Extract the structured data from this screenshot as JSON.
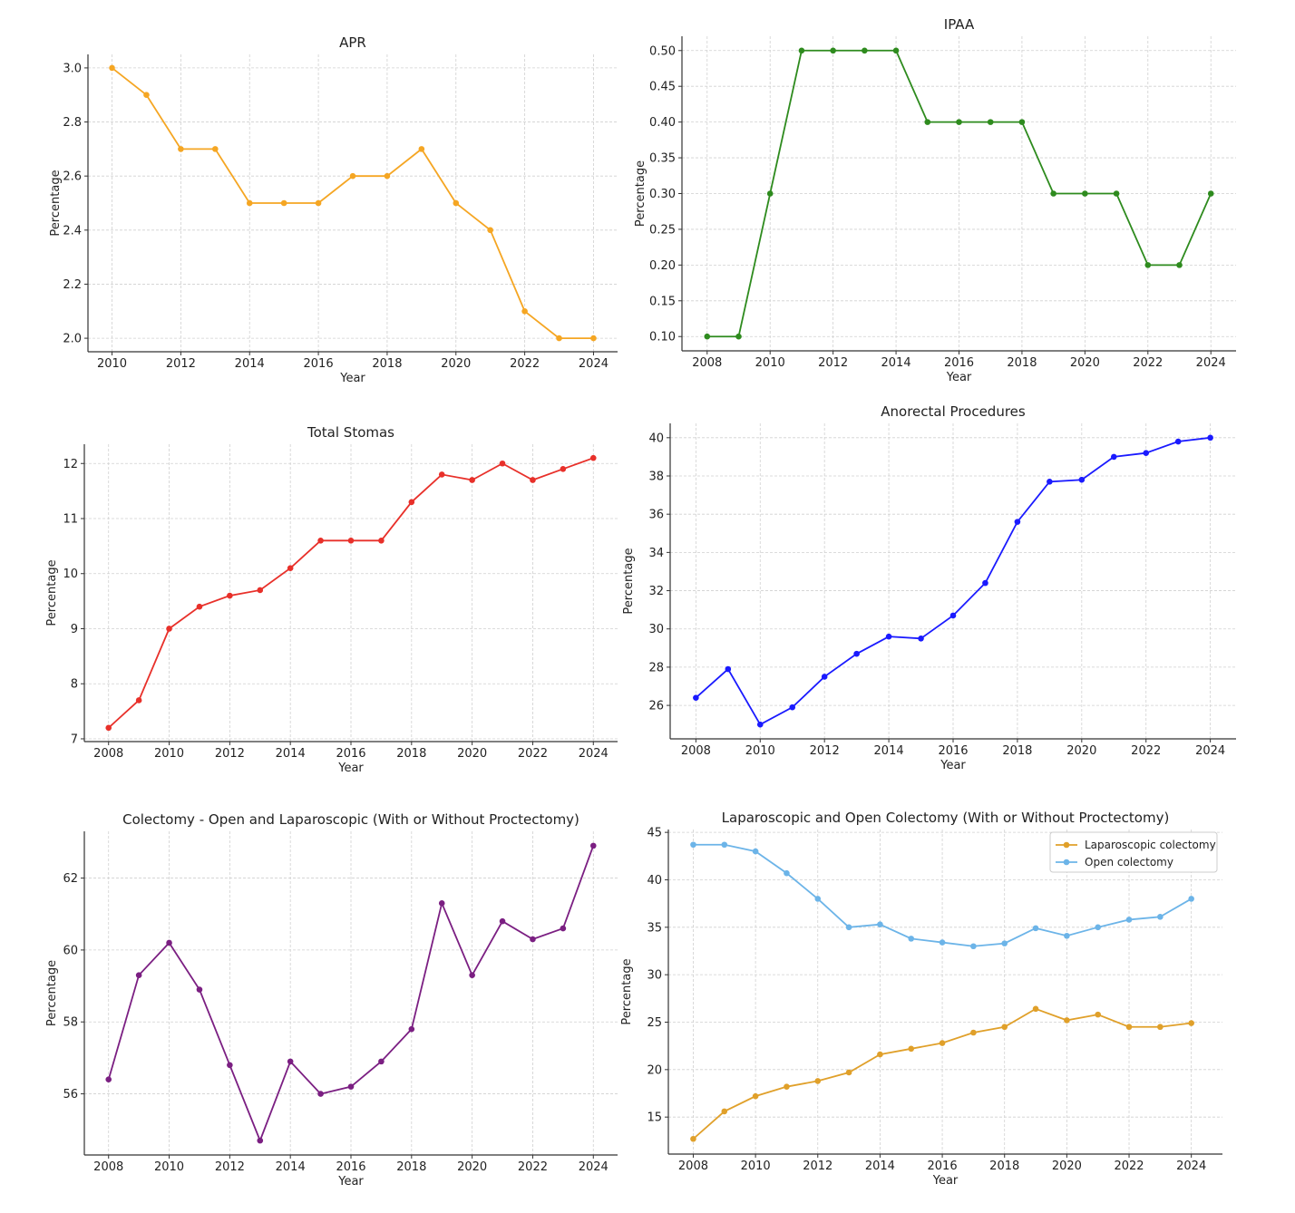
{
  "chart_data": [
    {
      "type": "line",
      "title": "APR",
      "xlabel": "Year",
      "ylabel": "Percentage",
      "x": [
        2010,
        2011,
        2012,
        2013,
        2014,
        2015,
        2016,
        2017,
        2018,
        2019,
        2020,
        2021,
        2022,
        2023,
        2024
      ],
      "xlim": [
        2009.3,
        2024.7
      ],
      "ylim": [
        1.95,
        3.05
      ],
      "xticks": [
        2010,
        2012,
        2014,
        2016,
        2018,
        2020,
        2022,
        2024
      ],
      "yticks": [
        "2.0",
        "2.2",
        "2.4",
        "2.6",
        "2.8",
        "3.0"
      ],
      "grid": true,
      "series": [
        {
          "color": "#f5a623",
          "values": [
            3.0,
            2.9,
            2.7,
            2.7,
            2.5,
            2.5,
            2.5,
            2.6,
            2.6,
            2.7,
            2.5,
            2.4,
            2.1,
            2.0,
            2.0
          ]
        }
      ]
    },
    {
      "type": "line",
      "title": "IPAA",
      "xlabel": "Year",
      "ylabel": "Percentage",
      "x": [
        2008,
        2009,
        2010,
        2011,
        2012,
        2013,
        2014,
        2015,
        2016,
        2017,
        2018,
        2019,
        2020,
        2021,
        2022,
        2023,
        2024
      ],
      "xlim": [
        2007.2,
        2024.8
      ],
      "ylim": [
        0.08,
        0.52
      ],
      "xticks": [
        2008,
        2010,
        2012,
        2014,
        2016,
        2018,
        2020,
        2022,
        2024
      ],
      "yticks": [
        "0.10",
        "0.15",
        "0.20",
        "0.25",
        "0.30",
        "0.35",
        "0.40",
        "0.45",
        "0.50"
      ],
      "grid": true,
      "series": [
        {
          "color": "#2e8b1e",
          "values": [
            0.1,
            0.1,
            0.3,
            0.5,
            0.5,
            0.5,
            0.5,
            0.4,
            0.4,
            0.4,
            0.4,
            0.3,
            0.3,
            0.3,
            0.2,
            0.2,
            0.3
          ]
        }
      ]
    },
    {
      "type": "line",
      "title": "Total Stomas",
      "xlabel": "Year",
      "ylabel": "Percentage",
      "x": [
        2008,
        2009,
        2010,
        2011,
        2012,
        2013,
        2014,
        2015,
        2016,
        2017,
        2018,
        2019,
        2020,
        2021,
        2022,
        2023,
        2024
      ],
      "xlim": [
        2007.2,
        2024.8
      ],
      "ylim": [
        6.95,
        12.35
      ],
      "xticks": [
        2008,
        2010,
        2012,
        2014,
        2016,
        2018,
        2020,
        2022,
        2024
      ],
      "yticks": [
        "7",
        "8",
        "9",
        "10",
        "11",
        "12"
      ],
      "grid": true,
      "series": [
        {
          "color": "#e8302a",
          "values": [
            7.2,
            7.7,
            9.0,
            9.4,
            9.6,
            9.7,
            10.1,
            10.6,
            10.6,
            10.6,
            11.3,
            11.8,
            11.7,
            12.0,
            11.7,
            11.9,
            12.1
          ]
        }
      ]
    },
    {
      "type": "line",
      "title": "Anorectal Procedures",
      "xlabel": "Year",
      "ylabel": "Percentage",
      "x": [
        2008,
        2009,
        2010,
        2011,
        2012,
        2013,
        2014,
        2015,
        2016,
        2017,
        2018,
        2019,
        2020,
        2021,
        2022,
        2023,
        2024
      ],
      "xlim": [
        2007.2,
        2024.8
      ],
      "ylim": [
        24.25,
        40.75
      ],
      "xticks": [
        2008,
        2010,
        2012,
        2014,
        2016,
        2018,
        2020,
        2022,
        2024
      ],
      "yticks": [
        "26",
        "28",
        "30",
        "32",
        "34",
        "36",
        "38",
        "40"
      ],
      "grid": true,
      "series": [
        {
          "color": "#1a1aff",
          "values": [
            26.4,
            27.9,
            25.0,
            25.9,
            27.5,
            28.7,
            29.6,
            29.5,
            30.7,
            32.4,
            35.6,
            37.7,
            37.8,
            39.0,
            39.2,
            39.8,
            40.0
          ]
        }
      ]
    },
    {
      "type": "line",
      "title": "Colectomy - Open and Laparoscopic (With or Without Proctectomy)",
      "xlabel": "Year",
      "ylabel": "Percentage",
      "x": [
        2008,
        2009,
        2010,
        2011,
        2012,
        2013,
        2014,
        2015,
        2016,
        2017,
        2018,
        2019,
        2020,
        2021,
        2022,
        2023,
        2024
      ],
      "xlim": [
        2007.2,
        2024.8
      ],
      "ylim": [
        54.3,
        63.3
      ],
      "xticks": [
        2008,
        2010,
        2012,
        2014,
        2016,
        2018,
        2020,
        2022,
        2024
      ],
      "yticks": [
        "56",
        "58",
        "60",
        "62"
      ],
      "grid": true,
      "series": [
        {
          "color": "#7b1f82",
          "values": [
            56.4,
            59.3,
            60.2,
            58.9,
            56.8,
            54.7,
            56.9,
            56.0,
            56.2,
            56.9,
            57.8,
            61.3,
            59.3,
            60.8,
            60.3,
            60.6,
            62.9
          ]
        }
      ]
    },
    {
      "type": "line",
      "title": "Laparoscopic and Open Colectomy (With or Without Proctectomy)",
      "xlabel": "Year",
      "ylabel": "Percentage",
      "x": [
        2008,
        2009,
        2010,
        2011,
        2012,
        2013,
        2014,
        2015,
        2016,
        2017,
        2018,
        2019,
        2020,
        2021,
        2022,
        2023,
        2024
      ],
      "xlim": [
        2007.2,
        2025.0
      ],
      "ylim": [
        11.1,
        45.3
      ],
      "xticks": [
        2008,
        2010,
        2012,
        2014,
        2016,
        2018,
        2020,
        2022,
        2024
      ],
      "yticks": [
        "15",
        "20",
        "25",
        "30",
        "35",
        "40",
        "45"
      ],
      "grid": true,
      "legend": "top-right",
      "series": [
        {
          "name": "Laparoscopic colectomy",
          "color": "#e0a02a",
          "values": [
            12.7,
            15.6,
            17.2,
            18.2,
            18.8,
            19.7,
            21.6,
            22.2,
            22.8,
            23.9,
            24.5,
            26.4,
            25.2,
            25.8,
            24.5,
            24.5,
            24.9
          ]
        },
        {
          "name": "Open colectomy",
          "color": "#6cb4e8",
          "values": [
            43.7,
            43.7,
            43.0,
            40.7,
            38.0,
            35.0,
            35.3,
            33.8,
            33.4,
            33.0,
            33.3,
            34.9,
            34.1,
            35.0,
            35.8,
            36.1,
            38.0
          ]
        }
      ]
    }
  ]
}
